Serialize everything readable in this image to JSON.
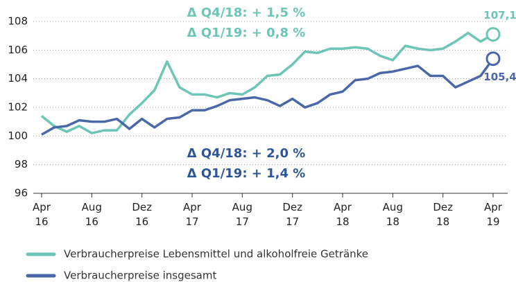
{
  "chart_data": {
    "type": "line",
    "categories": [
      "Apr 16",
      null,
      null,
      null,
      "Aug 16",
      null,
      null,
      null,
      "Dez 16",
      null,
      null,
      null,
      "Apr 17",
      null,
      null,
      null,
      "Aug 17",
      null,
      null,
      null,
      "Dez 17",
      null,
      null,
      null,
      "Apr 18",
      null,
      null,
      null,
      "Aug 18",
      null,
      null,
      null,
      "Dez 18",
      null,
      null,
      null,
      "Apr 19"
    ],
    "series": [
      {
        "name": "Verbraucherpreise Lebensmittel und alkoholfreie Getränke",
        "color": "#6cc5b5",
        "values": [
          101.4,
          100.7,
          100.3,
          100.7,
          100.2,
          100.4,
          100.4,
          101.5,
          102.3,
          103.2,
          105.2,
          103.4,
          102.9,
          102.9,
          102.7,
          103.0,
          102.9,
          103.4,
          104.2,
          104.3,
          105.0,
          105.9,
          105.8,
          106.1,
          106.1,
          106.2,
          106.1,
          105.6,
          105.3,
          106.3,
          106.1,
          106.0,
          106.1,
          106.6,
          107.2,
          106.6,
          107.1
        ],
        "value_labels": [
          null,
          null,
          null,
          null,
          null,
          null,
          null,
          null,
          null,
          null,
          null,
          null,
          null,
          null,
          null,
          null,
          null,
          null,
          null,
          null,
          null,
          null,
          null,
          null,
          null,
          null,
          null,
          null,
          null,
          null,
          null,
          null,
          null,
          null,
          null,
          null,
          "107,1"
        ],
        "annotations": [
          "Δ Q4/18: + 1,5 %",
          "Δ Q1/19: + 0,8 %"
        ]
      },
      {
        "name": "Verbraucherpreise insgesamt",
        "color": "#4a68a8",
        "values": [
          100.1,
          100.6,
          100.7,
          101.1,
          101.0,
          101.0,
          101.2,
          100.5,
          101.2,
          100.6,
          101.2,
          101.3,
          101.8,
          101.8,
          102.1,
          102.5,
          102.6,
          102.7,
          102.5,
          102.1,
          102.6,
          102.0,
          102.3,
          102.9,
          103.1,
          103.9,
          104.0,
          104.4,
          104.5,
          104.7,
          104.9,
          104.2,
          104.2,
          103.4,
          103.8,
          104.2,
          105.4
        ],
        "value_labels": [
          null,
          null,
          null,
          null,
          null,
          null,
          null,
          null,
          null,
          null,
          null,
          null,
          null,
          null,
          null,
          null,
          null,
          null,
          null,
          null,
          null,
          null,
          null,
          null,
          null,
          null,
          null,
          null,
          null,
          null,
          null,
          null,
          null,
          null,
          null,
          null,
          "105,4"
        ],
        "annotations": [
          "Δ Q4/18: + 2,0 %",
          "Δ Q1/19: + 1,4 %"
        ]
      }
    ],
    "ylim": [
      96,
      108
    ],
    "yticks": [
      96,
      98,
      100,
      102,
      104,
      106,
      108
    ],
    "grid": true
  }
}
